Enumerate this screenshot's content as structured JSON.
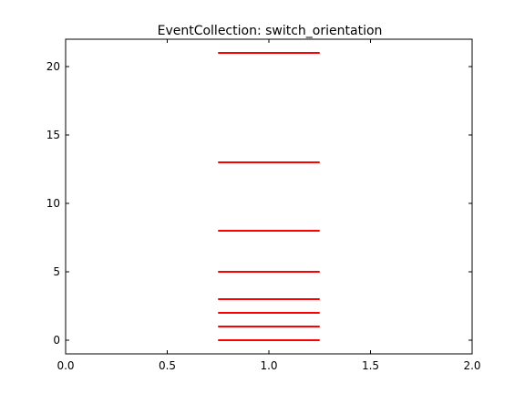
{
  "chart_data": {
    "type": "eventplot",
    "title": "EventCollection: switch_orientation",
    "xlabel": "",
    "ylabel": "",
    "xlim": [
      0.0,
      2.0
    ],
    "ylim": [
      -1,
      22
    ],
    "grid": false,
    "series": [
      {
        "color": "#ff0000",
        "orientation": "horizontal",
        "line_x_range": [
          0.75,
          1.25
        ],
        "events": [
          0,
          1,
          2,
          3,
          5,
          8,
          13,
          21
        ]
      }
    ],
    "x_ticks": [
      {
        "value": 0.0,
        "label": "0.0"
      },
      {
        "value": 0.5,
        "label": "0.5"
      },
      {
        "value": 1.0,
        "label": "1.0"
      },
      {
        "value": 1.5,
        "label": "1.5"
      },
      {
        "value": 2.0,
        "label": "2.0"
      }
    ],
    "y_ticks": [
      {
        "value": 0,
        "label": "0"
      },
      {
        "value": 5,
        "label": "5"
      },
      {
        "value": 10,
        "label": "10"
      },
      {
        "value": 15,
        "label": "15"
      },
      {
        "value": 20,
        "label": "20"
      }
    ]
  }
}
